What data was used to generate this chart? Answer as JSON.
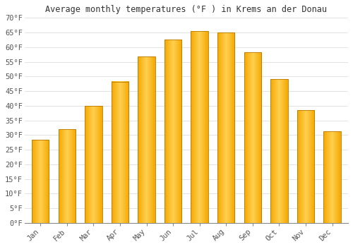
{
  "title": "Average monthly temperatures (°F ) in Krems an der Donau",
  "months": [
    "Jan",
    "Feb",
    "Mar",
    "Apr",
    "May",
    "Jun",
    "Jul",
    "Aug",
    "Sep",
    "Oct",
    "Nov",
    "Dec"
  ],
  "values": [
    28.4,
    32.0,
    39.9,
    48.2,
    56.7,
    62.6,
    65.5,
    64.9,
    58.3,
    49.1,
    38.5,
    31.3
  ],
  "bar_color_light": "#FFD050",
  "bar_color_dark": "#F5A800",
  "bar_edge_color": "#B87800",
  "background_color": "#FFFFFF",
  "grid_color": "#DDDDDD",
  "ylim": [
    0,
    70
  ],
  "yticks": [
    0,
    5,
    10,
    15,
    20,
    25,
    30,
    35,
    40,
    45,
    50,
    55,
    60,
    65,
    70
  ],
  "ytick_labels": [
    "0°F",
    "5°F",
    "10°F",
    "15°F",
    "20°F",
    "25°F",
    "30°F",
    "35°F",
    "40°F",
    "45°F",
    "50°F",
    "55°F",
    "60°F",
    "65°F",
    "70°F"
  ],
  "title_fontsize": 8.5,
  "tick_fontsize": 7.5,
  "bar_width": 0.65
}
